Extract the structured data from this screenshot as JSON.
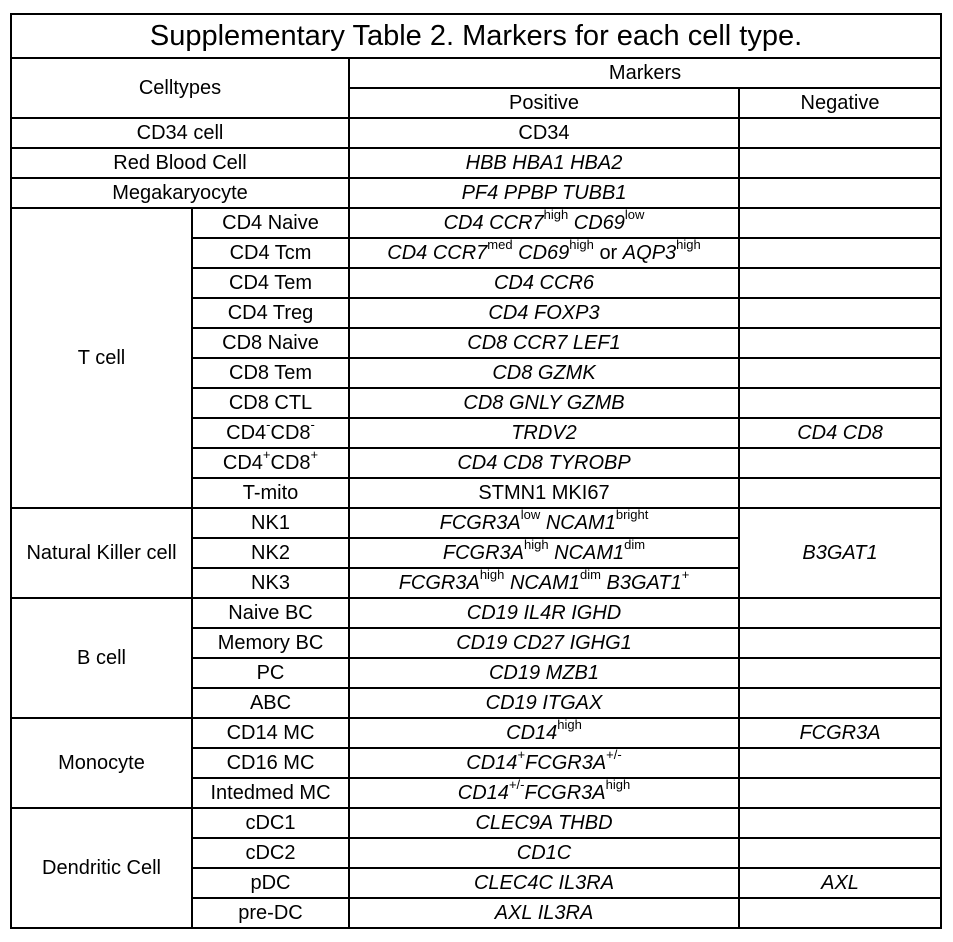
{
  "table": {
    "title": "Supplementary Table 2. Markers for each cell type.",
    "headers": {
      "celltypes": "Celltypes",
      "markers": "Markers",
      "positive": "Positive",
      "negative": "Negative"
    },
    "rows": {
      "cd34": {
        "celltype": "CD34 cell",
        "positive": "CD34",
        "negative": ""
      },
      "rbc": {
        "celltype": "Red Blood Cell",
        "positive": "HBB HBA1 HBA2",
        "negative": ""
      },
      "mega": {
        "celltype": "Megakaryocyte",
        "positive": "PF4 PPBP TUBB1",
        "negative": ""
      }
    },
    "tcell": {
      "group": "T cell",
      "cd4_naive": {
        "subtype": "CD4 Naive",
        "p1": "CD4 CCR7",
        "s1": "high",
        "p2": "CD69",
        "s2": "low"
      },
      "cd4_tcm": {
        "subtype": "CD4 Tcm",
        "p1": "CD4 CCR7",
        "s1": "med",
        "p2": "CD69",
        "s2": "high",
        "p3": "or",
        "p4": "AQP3",
        "s3": "high"
      },
      "cd4_tem": {
        "subtype": "CD4 Tem",
        "positive": "CD4 CCR6"
      },
      "cd4_treg": {
        "subtype": "CD4 Treg",
        "positive": "CD4 FOXP3"
      },
      "cd8_naive": {
        "subtype": "CD8 Naive",
        "positive": "CD8 CCR7 LEF1"
      },
      "cd8_tem": {
        "subtype": "CD8 Tem",
        "positive": "CD8 GZMK"
      },
      "cd8_ctl": {
        "subtype": "CD8 CTL",
        "positive": "CD8 GNLY GZMB"
      },
      "dn": {
        "a": "CD4",
        "sa": "-",
        "b": "CD8",
        "sb": "-",
        "positive": "TRDV2",
        "negative": "CD4 CD8"
      },
      "dp": {
        "a": "CD4",
        "sa": "+",
        "b": "CD8",
        "sb": "+",
        "positive": "CD4 CD8 TYROBP"
      },
      "tmito": {
        "subtype": "T-mito",
        "positive": "STMN1 MKI67"
      }
    },
    "nk": {
      "group": "Natural Killer cell",
      "negative": "B3GAT1",
      "nk1": {
        "subtype": "NK1",
        "p1": "FCGR3A",
        "s1": "low",
        "p2": "NCAM1",
        "s2": "bright"
      },
      "nk2": {
        "subtype": "NK2",
        "p1": "FCGR3A",
        "s1": "high",
        "p2": "NCAM1",
        "s2": "dim"
      },
      "nk3": {
        "subtype": "NK3",
        "p1": "FCGR3A",
        "s1": "high",
        "p2": "NCAM1",
        "s2": "dim",
        "p3": "B3GAT1",
        "s3": "+"
      }
    },
    "bcell": {
      "group": "B cell",
      "naive": {
        "subtype": "Naive BC",
        "positive": "CD19 IL4R IGHD"
      },
      "memory": {
        "subtype": "Memory BC",
        "positive": "CD19 CD27 IGHG1"
      },
      "pc": {
        "subtype": "PC",
        "positive": "CD19 MZB1"
      },
      "abc": {
        "subtype": "ABC",
        "positive": "CD19 ITGAX"
      }
    },
    "mono": {
      "group": "Monocyte",
      "cd14": {
        "subtype": "CD14 MC",
        "p1": "CD14",
        "s1": "high",
        "negative": "FCGR3A"
      },
      "cd16": {
        "subtype": "CD16 MC",
        "p1": "CD14",
        "s1": "+",
        "p2": "FCGR3A",
        "s2": "+/-"
      },
      "inter": {
        "subtype": "Intedmed MC",
        "p1": "CD14",
        "s1": "+/-",
        "p2": "FCGR3A",
        "s2": "high"
      }
    },
    "dc": {
      "group": "Dendritic Cell",
      "cdc1": {
        "subtype": "cDC1",
        "positive": "CLEC9A THBD"
      },
      "cdc2": {
        "subtype": "cDC2",
        "positive": "CD1C"
      },
      "pdc": {
        "subtype": "pDC",
        "positive": "CLEC4C IL3RA",
        "negative": "AXL"
      },
      "predc": {
        "subtype": "pre-DC",
        "positive": "AXL IL3RA"
      }
    }
  }
}
